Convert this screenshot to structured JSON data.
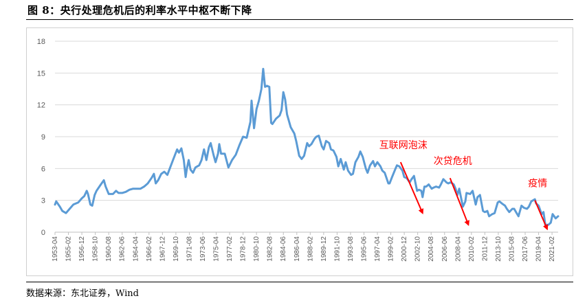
{
  "figure": {
    "title": "图 8：央行处理危机后的利率水平中枢不断下降",
    "source": "数据来源：东北证券，Wind"
  },
  "chart_data": {
    "type": "line",
    "title": "",
    "xlabel": "",
    "ylabel": "",
    "ylim": [
      0,
      18
    ],
    "yticks": [
      0,
      3,
      6,
      9,
      12,
      15,
      18
    ],
    "grid": true,
    "legend": "none",
    "x_range": [
      "1953-04",
      "2021-12"
    ],
    "xtick_labels": [
      "1953-04",
      "1955-02",
      "1956-12",
      "1958-10",
      "1960-08",
      "1962-06",
      "1964-04",
      "1966-02",
      "1967-12",
      "1969-10",
      "1971-08",
      "1973-06",
      "1975-04",
      "1977-02",
      "1978-12",
      "1980-10",
      "1982-08",
      "1984-06",
      "1986-04",
      "1988-02",
      "1989-12",
      "1991-10",
      "1993-08",
      "1995-06",
      "1997-04",
      "1999-02",
      "2000-12",
      "2002-10",
      "2004-08",
      "2006-06",
      "2008-04",
      "2010-02",
      "2011-12",
      "2013-10",
      "2015-08",
      "2017-06",
      "2019-04",
      "2021-02"
    ],
    "series": [
      {
        "name": "",
        "color": "#5b9bd5",
        "points": [
          [
            "1953-04",
            2.6
          ],
          [
            "1953-06",
            2.9
          ],
          [
            "1953-12",
            2.4
          ],
          [
            "1954-04",
            2.0
          ],
          [
            "1954-10",
            1.8
          ],
          [
            "1955-04",
            2.2
          ],
          [
            "1955-10",
            2.6
          ],
          [
            "1956-06",
            2.8
          ],
          [
            "1956-12",
            3.2
          ],
          [
            "1957-04",
            3.4
          ],
          [
            "1957-08",
            3.9
          ],
          [
            "1957-10",
            3.6
          ],
          [
            "1958-02",
            2.6
          ],
          [
            "1958-05",
            2.5
          ],
          [
            "1958-09",
            3.5
          ],
          [
            "1958-12",
            3.9
          ],
          [
            "1959-06",
            4.4
          ],
          [
            "1959-12",
            4.9
          ],
          [
            "1960-03",
            4.3
          ],
          [
            "1960-08",
            3.6
          ],
          [
            "1961-03",
            3.6
          ],
          [
            "1961-08",
            3.9
          ],
          [
            "1961-12",
            3.7
          ],
          [
            "1962-06",
            3.7
          ],
          [
            "1962-12",
            3.8
          ],
          [
            "1963-06",
            4.0
          ],
          [
            "1963-12",
            4.1
          ],
          [
            "1964-06",
            4.1
          ],
          [
            "1964-12",
            4.1
          ],
          [
            "1965-06",
            4.3
          ],
          [
            "1965-12",
            4.6
          ],
          [
            "1966-06",
            5.1
          ],
          [
            "1966-10",
            5.5
          ],
          [
            "1967-01",
            4.6
          ],
          [
            "1967-05",
            4.9
          ],
          [
            "1967-10",
            5.5
          ],
          [
            "1968-03",
            5.7
          ],
          [
            "1968-08",
            5.4
          ],
          [
            "1968-12",
            6.0
          ],
          [
            "1969-06",
            6.9
          ],
          [
            "1969-12",
            7.8
          ],
          [
            "1970-03",
            7.5
          ],
          [
            "1970-07",
            7.9
          ],
          [
            "1970-11",
            6.8
          ],
          [
            "1971-02",
            5.2
          ],
          [
            "1971-04",
            6.0
          ],
          [
            "1971-07",
            6.8
          ],
          [
            "1971-10",
            5.9
          ],
          [
            "1972-02",
            5.6
          ],
          [
            "1972-06",
            6.1
          ],
          [
            "1972-12",
            6.3
          ],
          [
            "1973-04",
            6.8
          ],
          [
            "1973-08",
            7.8
          ],
          [
            "1973-12",
            6.8
          ],
          [
            "1974-04",
            8.0
          ],
          [
            "1974-07",
            8.4
          ],
          [
            "1974-12",
            7.2
          ],
          [
            "1975-03",
            6.6
          ],
          [
            "1975-07",
            7.4
          ],
          [
            "1975-09",
            8.3
          ],
          [
            "1975-12",
            7.4
          ],
          [
            "1976-06",
            7.4
          ],
          [
            "1976-12",
            6.1
          ],
          [
            "1977-06",
            6.8
          ],
          [
            "1977-12",
            7.3
          ],
          [
            "1978-06",
            8.2
          ],
          [
            "1978-12",
            9.0
          ],
          [
            "1979-06",
            8.9
          ],
          [
            "1979-12",
            10.4
          ],
          [
            "1980-02",
            12.4
          ],
          [
            "1980-06",
            9.8
          ],
          [
            "1980-10",
            11.6
          ],
          [
            "1981-02",
            12.4
          ],
          [
            "1981-06",
            13.5
          ],
          [
            "1981-09",
            15.4
          ],
          [
            "1981-12",
            13.7
          ],
          [
            "1982-03",
            13.8
          ],
          [
            "1982-07",
            13.7
          ],
          [
            "1982-10",
            10.3
          ],
          [
            "1982-12",
            10.2
          ],
          [
            "1983-06",
            10.7
          ],
          [
            "1983-12",
            11.0
          ],
          [
            "1984-03",
            11.5
          ],
          [
            "1984-06",
            13.2
          ],
          [
            "1984-09",
            12.5
          ],
          [
            "1984-12",
            11.1
          ],
          [
            "1985-06",
            9.9
          ],
          [
            "1985-12",
            9.3
          ],
          [
            "1986-03",
            8.6
          ],
          [
            "1986-08",
            7.2
          ],
          [
            "1986-12",
            6.9
          ],
          [
            "1987-04",
            7.2
          ],
          [
            "1987-09",
            8.4
          ],
          [
            "1987-12",
            8.1
          ],
          [
            "1988-04",
            8.3
          ],
          [
            "1988-09",
            8.8
          ],
          [
            "1988-12",
            9.0
          ],
          [
            "1989-04",
            9.1
          ],
          [
            "1989-09",
            8.1
          ],
          [
            "1989-12",
            7.8
          ],
          [
            "1990-04",
            8.6
          ],
          [
            "1990-09",
            8.4
          ],
          [
            "1990-12",
            7.8
          ],
          [
            "1991-04",
            7.7
          ],
          [
            "1991-09",
            7.1
          ],
          [
            "1991-12",
            6.2
          ],
          [
            "1992-04",
            6.9
          ],
          [
            "1992-09",
            5.9
          ],
          [
            "1992-12",
            6.6
          ],
          [
            "1993-04",
            5.8
          ],
          [
            "1993-09",
            5.4
          ],
          [
            "1993-12",
            5.5
          ],
          [
            "1994-04",
            6.6
          ],
          [
            "1994-09",
            7.1
          ],
          [
            "1994-12",
            7.6
          ],
          [
            "1995-04",
            7.1
          ],
          [
            "1995-09",
            6.0
          ],
          [
            "1995-12",
            5.6
          ],
          [
            "1996-04",
            6.3
          ],
          [
            "1996-09",
            6.7
          ],
          [
            "1996-12",
            6.2
          ],
          [
            "1997-04",
            6.6
          ],
          [
            "1997-09",
            6.2
          ],
          [
            "1997-12",
            5.8
          ],
          [
            "1998-04",
            5.6
          ],
          [
            "1998-10",
            4.6
          ],
          [
            "1998-12",
            4.6
          ],
          [
            "1999-04",
            5.2
          ],
          [
            "1999-09",
            5.9
          ],
          [
            "1999-12",
            6.3
          ],
          [
            "2000-04",
            6.2
          ],
          [
            "2000-09",
            5.8
          ],
          [
            "2000-12",
            5.2
          ],
          [
            "2001-04",
            5.1
          ],
          [
            "2001-09",
            4.7
          ],
          [
            "2001-12",
            5.0
          ],
          [
            "2002-04",
            5.3
          ],
          [
            "2002-09",
            3.9
          ],
          [
            "2002-12",
            4.0
          ],
          [
            "2003-04",
            3.9
          ],
          [
            "2003-06",
            3.3
          ],
          [
            "2003-09",
            4.3
          ],
          [
            "2003-12",
            4.3
          ],
          [
            "2004-04",
            4.5
          ],
          [
            "2004-09",
            4.1
          ],
          [
            "2004-12",
            4.2
          ],
          [
            "2005-04",
            4.3
          ],
          [
            "2005-09",
            4.2
          ],
          [
            "2005-12",
            4.5
          ],
          [
            "2006-04",
            5.0
          ],
          [
            "2006-09",
            4.7
          ],
          [
            "2006-12",
            4.6
          ],
          [
            "2007-04",
            4.7
          ],
          [
            "2007-09",
            4.5
          ],
          [
            "2007-12",
            4.1
          ],
          [
            "2008-03",
            3.5
          ],
          [
            "2008-06",
            4.1
          ],
          [
            "2008-12",
            2.4
          ],
          [
            "2009-04",
            2.9
          ],
          [
            "2009-06",
            3.7
          ],
          [
            "2009-12",
            3.6
          ],
          [
            "2010-04",
            3.9
          ],
          [
            "2010-09",
            2.6
          ],
          [
            "2010-12",
            3.3
          ],
          [
            "2011-04",
            3.5
          ],
          [
            "2011-09",
            2.0
          ],
          [
            "2011-12",
            1.9
          ],
          [
            "2012-04",
            2.0
          ],
          [
            "2012-07",
            1.5
          ],
          [
            "2012-12",
            1.7
          ],
          [
            "2013-04",
            1.8
          ],
          [
            "2013-09",
            2.8
          ],
          [
            "2013-12",
            2.9
          ],
          [
            "2014-04",
            2.7
          ],
          [
            "2014-09",
            2.5
          ],
          [
            "2014-12",
            2.2
          ],
          [
            "2015-04",
            1.9
          ],
          [
            "2015-09",
            2.2
          ],
          [
            "2015-12",
            2.2
          ],
          [
            "2016-04",
            1.8
          ],
          [
            "2016-07",
            1.5
          ],
          [
            "2016-12",
            2.5
          ],
          [
            "2017-04",
            2.3
          ],
          [
            "2017-09",
            2.2
          ],
          [
            "2017-12",
            2.4
          ],
          [
            "2018-04",
            2.9
          ],
          [
            "2018-10",
            3.1
          ],
          [
            "2018-12",
            2.7
          ],
          [
            "2019-04",
            2.5
          ],
          [
            "2019-09",
            1.7
          ],
          [
            "2019-12",
            1.9
          ],
          [
            "2020-03",
            0.7
          ],
          [
            "2020-08",
            0.7
          ],
          [
            "2020-12",
            0.9
          ],
          [
            "2021-03",
            1.7
          ],
          [
            "2021-08",
            1.3
          ],
          [
            "2021-12",
            1.5
          ]
        ]
      }
    ],
    "annotations": [
      {
        "label": "互联网泡沫",
        "arrow_from": [
          "2000-06",
          6.6
        ],
        "arrow_to": [
          "2003-06",
          1.8
        ],
        "color": "#ff0000"
      },
      {
        "label": "次贷危机",
        "arrow_from": [
          "2007-03",
          5.1
        ],
        "arrow_to": [
          "2009-09",
          0.7
        ],
        "color": "#ff0000"
      },
      {
        "label": "疫情",
        "arrow_from": [
          "2018-10",
          3.0
        ],
        "arrow_to": [
          "2020-06",
          0.3
        ],
        "color": "#ff0000"
      }
    ]
  }
}
